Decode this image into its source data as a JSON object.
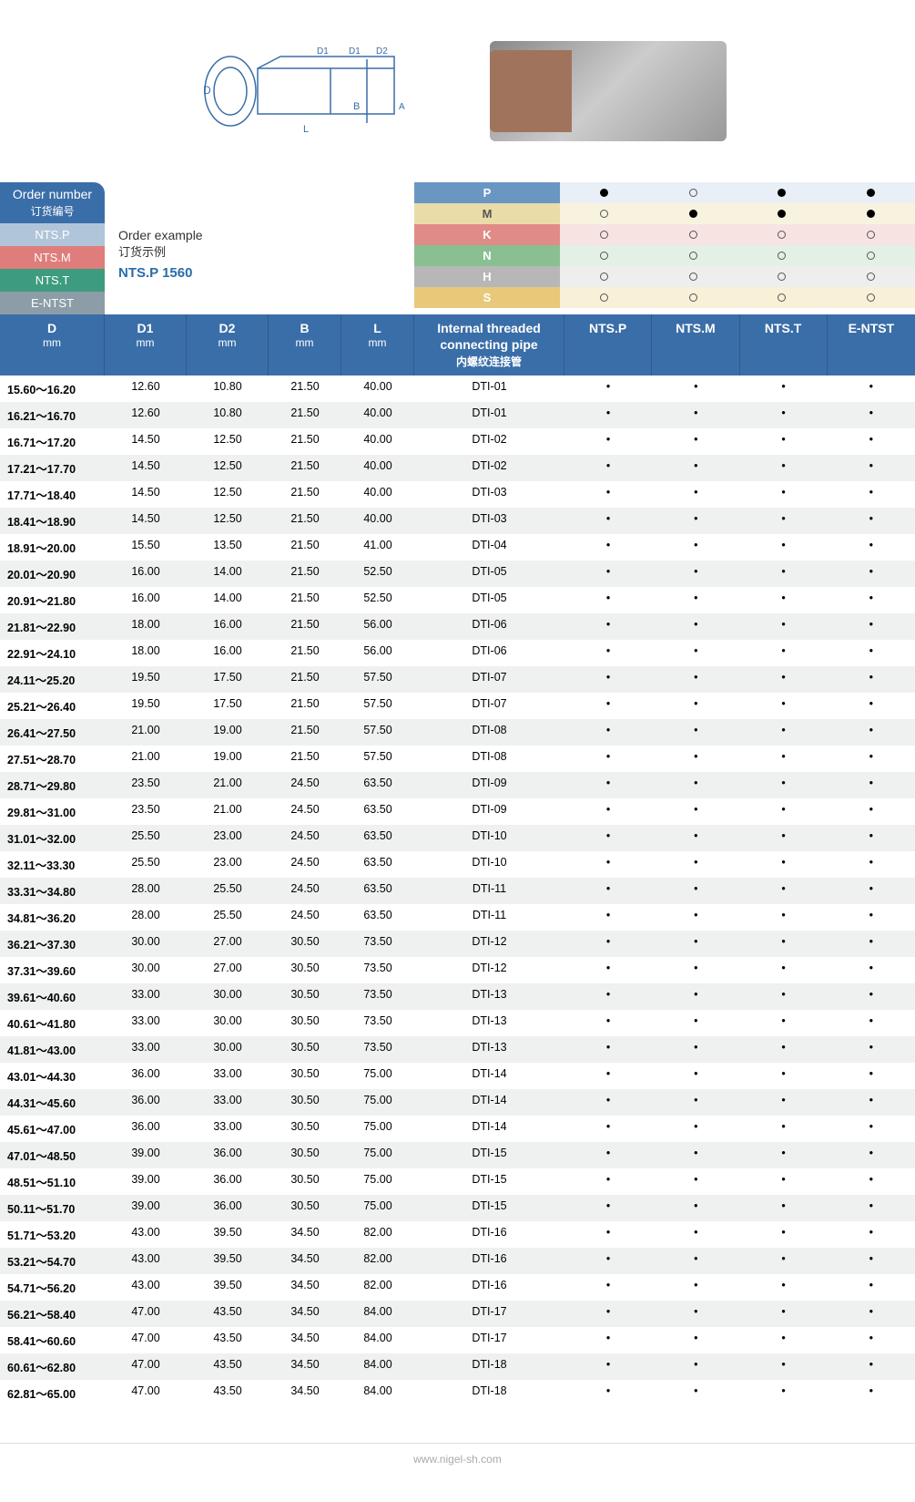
{
  "header_images": {
    "diagram_labels": [
      "D",
      "D1",
      "D1",
      "D2",
      "L",
      "B",
      "A"
    ]
  },
  "order_block": {
    "title_en": "Order number",
    "title_cn": "订货编号",
    "rows": [
      "NTS.P",
      "NTS.M",
      "NTS.T",
      "E-NTST"
    ],
    "row_colors": {
      "NTS.P": "#b0c5d9",
      "NTS.M": "#de7d7b",
      "NTS.T": "#3d9c7f",
      "E-NTST": "#8c9da8"
    }
  },
  "order_example": {
    "line1": "Order example",
    "line2": "订货示例",
    "line3": "NTS.P 1560"
  },
  "material_matrix": {
    "rows": [
      "P",
      "M",
      "K",
      "N",
      "H",
      "S"
    ],
    "row_bg": {
      "P": "#6a96c3",
      "M": "#e9dca9",
      "K": "#e08b88",
      "N": "#8abf92",
      "H": "#b7b7b7",
      "S": "#e8c97a"
    },
    "cells": {
      "P": [
        "filled",
        "open",
        "filled",
        "filled"
      ],
      "M": [
        "open",
        "filled",
        "filled",
        "filled"
      ],
      "K": [
        "open",
        "open",
        "open",
        "open"
      ],
      "N": [
        "open",
        "open",
        "open",
        "open"
      ],
      "H": [
        "open",
        "open",
        "open",
        "open"
      ],
      "S": [
        "open",
        "open",
        "open",
        "open"
      ]
    }
  },
  "columns": {
    "d": {
      "l1": "D",
      "l2": "mm"
    },
    "d1": {
      "l1": "D1",
      "l2": "mm"
    },
    "d2": {
      "l1": "D2",
      "l2": "mm"
    },
    "b": {
      "l1": "B",
      "l2": "mm"
    },
    "l": {
      "l1": "L",
      "l2": "mm"
    },
    "pipe": {
      "l1": "Internal threaded",
      "l2": "connecting pipe",
      "l3": "内螺纹连接管"
    },
    "c1": "NTS.P",
    "c2": "NTS.M",
    "c3": "NTS.T",
    "c4": "E-NTST"
  },
  "rows": [
    {
      "d": "15.60～16.20",
      "d1": "12.60",
      "d2": "10.80",
      "b": "21.50",
      "l": "40.00",
      "pipe": "DTI-01"
    },
    {
      "d": "16.21～16.70",
      "d1": "12.60",
      "d2": "10.80",
      "b": "21.50",
      "l": "40.00",
      "pipe": "DTI-01"
    },
    {
      "d": "16.71～17.20",
      "d1": "14.50",
      "d2": "12.50",
      "b": "21.50",
      "l": "40.00",
      "pipe": "DTI-02"
    },
    {
      "d": "17.21～17.70",
      "d1": "14.50",
      "d2": "12.50",
      "b": "21.50",
      "l": "40.00",
      "pipe": "DTI-02"
    },
    {
      "d": "17.71～18.40",
      "d1": "14.50",
      "d2": "12.50",
      "b": "21.50",
      "l": "40.00",
      "pipe": "DTI-03"
    },
    {
      "d": "18.41～18.90",
      "d1": "14.50",
      "d2": "12.50",
      "b": "21.50",
      "l": "40.00",
      "pipe": "DTI-03"
    },
    {
      "d": "18.91～20.00",
      "d1": "15.50",
      "d2": "13.50",
      "b": "21.50",
      "l": "41.00",
      "pipe": "DTI-04"
    },
    {
      "d": "20.01～20.90",
      "d1": "16.00",
      "d2": "14.00",
      "b": "21.50",
      "l": "52.50",
      "pipe": "DTI-05"
    },
    {
      "d": "20.91～21.80",
      "d1": "16.00",
      "d2": "14.00",
      "b": "21.50",
      "l": "52.50",
      "pipe": "DTI-05"
    },
    {
      "d": "21.81～22.90",
      "d1": "18.00",
      "d2": "16.00",
      "b": "21.50",
      "l": "56.00",
      "pipe": "DTI-06"
    },
    {
      "d": "22.91～24.10",
      "d1": "18.00",
      "d2": "16.00",
      "b": "21.50",
      "l": "56.00",
      "pipe": "DTI-06"
    },
    {
      "d": "24.11～25.20",
      "d1": "19.50",
      "d2": "17.50",
      "b": "21.50",
      "l": "57.50",
      "pipe": "DTI-07"
    },
    {
      "d": "25.21～26.40",
      "d1": "19.50",
      "d2": "17.50",
      "b": "21.50",
      "l": "57.50",
      "pipe": "DTI-07"
    },
    {
      "d": "26.41～27.50",
      "d1": "21.00",
      "d2": "19.00",
      "b": "21.50",
      "l": "57.50",
      "pipe": "DTI-08"
    },
    {
      "d": "27.51～28.70",
      "d1": "21.00",
      "d2": "19.00",
      "b": "21.50",
      "l": "57.50",
      "pipe": "DTI-08"
    },
    {
      "d": "28.71～29.80",
      "d1": "23.50",
      "d2": "21.00",
      "b": "24.50",
      "l": "63.50",
      "pipe": "DTI-09"
    },
    {
      "d": "29.81～31.00",
      "d1": "23.50",
      "d2": "21.00",
      "b": "24.50",
      "l": "63.50",
      "pipe": "DTI-09"
    },
    {
      "d": "31.01～32.00",
      "d1": "25.50",
      "d2": "23.00",
      "b": "24.50",
      "l": "63.50",
      "pipe": "DTI-10"
    },
    {
      "d": "32.11～33.30",
      "d1": "25.50",
      "d2": "23.00",
      "b": "24.50",
      "l": "63.50",
      "pipe": "DTI-10"
    },
    {
      "d": "33.31～34.80",
      "d1": "28.00",
      "d2": "25.50",
      "b": "24.50",
      "l": "63.50",
      "pipe": "DTI-11"
    },
    {
      "d": "34.81～36.20",
      "d1": "28.00",
      "d2": "25.50",
      "b": "24.50",
      "l": "63.50",
      "pipe": "DTI-11"
    },
    {
      "d": "36.21～37.30",
      "d1": "30.00",
      "d2": "27.00",
      "b": "30.50",
      "l": "73.50",
      "pipe": "DTI-12"
    },
    {
      "d": "37.31～39.60",
      "d1": "30.00",
      "d2": "27.00",
      "b": "30.50",
      "l": "73.50",
      "pipe": "DTI-12"
    },
    {
      "d": "39.61～40.60",
      "d1": "33.00",
      "d2": "30.00",
      "b": "30.50",
      "l": "73.50",
      "pipe": "DTI-13"
    },
    {
      "d": "40.61～41.80",
      "d1": "33.00",
      "d2": "30.00",
      "b": "30.50",
      "l": "73.50",
      "pipe": "DTI-13"
    },
    {
      "d": "41.81～43.00",
      "d1": "33.00",
      "d2": "30.00",
      "b": "30.50",
      "l": "73.50",
      "pipe": "DTI-13"
    },
    {
      "d": "43.01～44.30",
      "d1": "36.00",
      "d2": "33.00",
      "b": "30.50",
      "l": "75.00",
      "pipe": "DTI-14"
    },
    {
      "d": "44.31～45.60",
      "d1": "36.00",
      "d2": "33.00",
      "b": "30.50",
      "l": "75.00",
      "pipe": "DTI-14"
    },
    {
      "d": "45.61～47.00",
      "d1": "36.00",
      "d2": "33.00",
      "b": "30.50",
      "l": "75.00",
      "pipe": "DTI-14"
    },
    {
      "d": "47.01～48.50",
      "d1": "39.00",
      "d2": "36.00",
      "b": "30.50",
      "l": "75.00",
      "pipe": "DTI-15"
    },
    {
      "d": "48.51～51.10",
      "d1": "39.00",
      "d2": "36.00",
      "b": "30.50",
      "l": "75.00",
      "pipe": "DTI-15"
    },
    {
      "d": "50.11～51.70",
      "d1": "39.00",
      "d2": "36.00",
      "b": "30.50",
      "l": "75.00",
      "pipe": "DTI-15"
    },
    {
      "d": "51.71～53.20",
      "d1": "43.00",
      "d2": "39.50",
      "b": "34.50",
      "l": "82.00",
      "pipe": "DTI-16"
    },
    {
      "d": "53.21～54.70",
      "d1": "43.00",
      "d2": "39.50",
      "b": "34.50",
      "l": "82.00",
      "pipe": "DTI-16"
    },
    {
      "d": "54.71～56.20",
      "d1": "43.00",
      "d2": "39.50",
      "b": "34.50",
      "l": "82.00",
      "pipe": "DTI-16"
    },
    {
      "d": "56.21～58.40",
      "d1": "47.00",
      "d2": "43.50",
      "b": "34.50",
      "l": "84.00",
      "pipe": "DTI-17"
    },
    {
      "d": "58.41～60.60",
      "d1": "47.00",
      "d2": "43.50",
      "b": "34.50",
      "l": "84.00",
      "pipe": "DTI-17"
    },
    {
      "d": "60.61～62.80",
      "d1": "47.00",
      "d2": "43.50",
      "b": "34.50",
      "l": "84.00",
      "pipe": "DTI-18"
    },
    {
      "d": "62.81～65.00",
      "d1": "47.00",
      "d2": "43.50",
      "b": "34.50",
      "l": "84.00",
      "pipe": "DTI-18"
    }
  ],
  "footer": "www.nigel-sh.com",
  "colors": {
    "header_bg": "#3a6ea8",
    "row_alt_bg": "#eff1f0"
  }
}
